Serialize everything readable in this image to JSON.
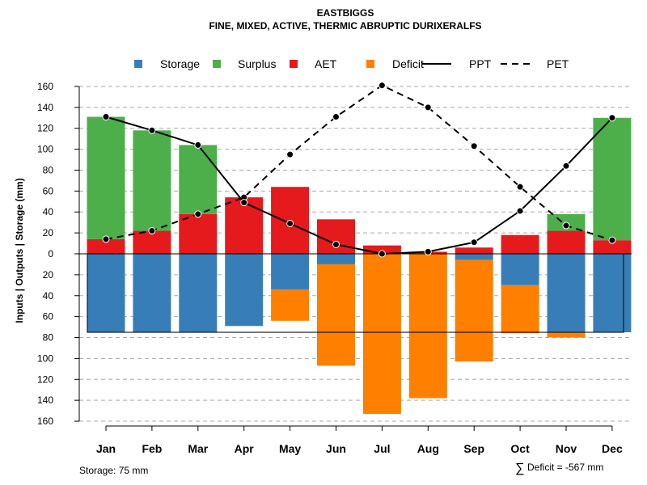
{
  "chart_data": {
    "type": "bar",
    "title": "EASTBIGGS",
    "subtitle": "FINE, MIXED, ACTIVE, THERMIC ABRUPTIC DURIXERALFS",
    "ylabel": "Inputs | Outputs | Storage    (mm)",
    "ylim": [
      -160,
      160
    ],
    "yticks": [
      160,
      140,
      120,
      100,
      80,
      60,
      40,
      20,
      0,
      20,
      40,
      60,
      80,
      100,
      120,
      140,
      160
    ],
    "categories": [
      "Jan",
      "Feb",
      "Mar",
      "Apr",
      "May",
      "Jun",
      "Jul",
      "Aug",
      "Sep",
      "Oct",
      "Nov",
      "Dec"
    ],
    "legend": [
      {
        "name": "Storage",
        "kind": "box",
        "color": "#377EB8"
      },
      {
        "name": "Surplus",
        "kind": "box",
        "color": "#4DAF4A"
      },
      {
        "name": "AET",
        "kind": "box",
        "color": "#E41A1C"
      },
      {
        "name": "Deficit",
        "kind": "box",
        "color": "#FF7F00"
      },
      {
        "name": "PPT",
        "kind": "solid",
        "color": "#000000"
      },
      {
        "name": "PET",
        "kind": "dashed",
        "color": "#000000"
      }
    ],
    "series": [
      {
        "name": "AET",
        "values": [
          14,
          22,
          38,
          54,
          64,
          33,
          8,
          2,
          6,
          18,
          22,
          13
        ]
      },
      {
        "name": "Surplus",
        "values": [
          117,
          96,
          66,
          0,
          0,
          0,
          0,
          0,
          0,
          0,
          16,
          117
        ]
      },
      {
        "name": "Storage",
        "values": [
          75,
          75,
          75,
          69,
          34,
          10,
          0,
          0,
          6,
          30,
          75,
          75
        ]
      },
      {
        "name": "Deficit",
        "values": [
          0,
          0,
          0,
          0,
          30,
          97,
          153,
          138,
          97,
          46,
          5,
          0
        ]
      },
      {
        "name": "PPT",
        "values": [
          131,
          118,
          104,
          49,
          29,
          9,
          0,
          2,
          11,
          41,
          84,
          130
        ]
      },
      {
        "name": "PET",
        "values": [
          14,
          22,
          38,
          54,
          95,
          131,
          161,
          140,
          103,
          64,
          27,
          13
        ]
      }
    ],
    "storage_capacity": 75
  },
  "footer": {
    "storage_note": "Storage: 75 mm",
    "deficit_symbol": "∑",
    "deficit_note": "Deficit = -567 mm"
  }
}
